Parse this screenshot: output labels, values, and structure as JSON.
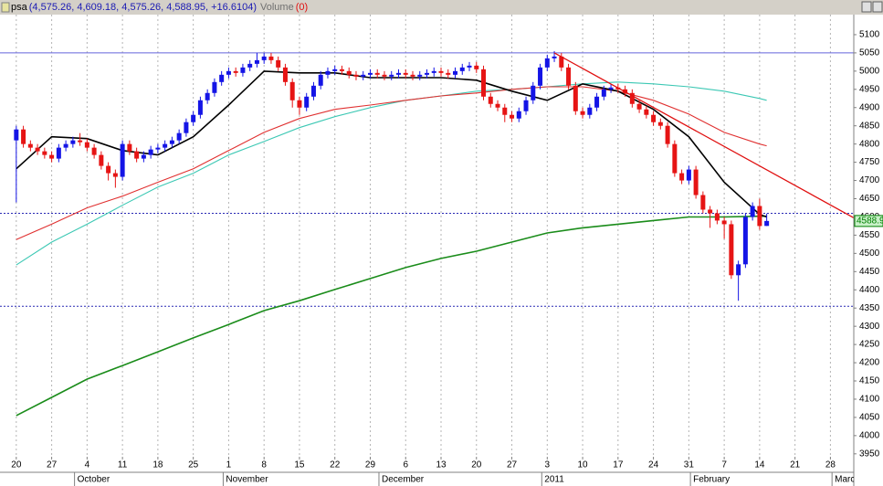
{
  "chart_data": {
    "type": "candlestick",
    "symbol": "psa",
    "quote": "(4,575.26, 4,609.18, 4,575.26, 4,588.95, +16.6104)",
    "volume_label": "Volume",
    "volume_value": "(0)",
    "ylim": [
      3942,
      5150
    ],
    "yticks": [
      3950,
      4000,
      4050,
      4100,
      4150,
      4200,
      4250,
      4300,
      4350,
      4400,
      4450,
      4500,
      4550,
      4600,
      4650,
      4700,
      4750,
      4800,
      4850,
      4900,
      4950,
      5000,
      5050,
      5100
    ],
    "xlim": [
      -2.3,
      118.3
    ],
    "xticks": [
      {
        "value": 0,
        "label": "20"
      },
      {
        "value": 5,
        "label": "27"
      },
      {
        "value": 10,
        "label": "4"
      },
      {
        "value": 15,
        "label": "11"
      },
      {
        "value": 20,
        "label": "18"
      },
      {
        "value": 25,
        "label": "25"
      },
      {
        "value": 30,
        "label": "1"
      },
      {
        "value": 35,
        "label": "8"
      },
      {
        "value": 40,
        "label": "15"
      },
      {
        "value": 45,
        "label": "22"
      },
      {
        "value": 50,
        "label": "29"
      },
      {
        "value": 55,
        "label": "6"
      },
      {
        "value": 60,
        "label": "13"
      },
      {
        "value": 65,
        "label": "20"
      },
      {
        "value": 70,
        "label": "27"
      },
      {
        "value": 75,
        "label": "3"
      },
      {
        "value": 80,
        "label": "10"
      },
      {
        "value": 85,
        "label": "17"
      },
      {
        "value": 90,
        "label": "24"
      },
      {
        "value": 95,
        "label": "31"
      },
      {
        "value": 100,
        "label": "7"
      },
      {
        "value": 105,
        "label": "14"
      },
      {
        "value": 110,
        "label": "21"
      },
      {
        "value": 115,
        "label": "28"
      }
    ],
    "month_ticks": [
      {
        "value": 9,
        "label": "October"
      },
      {
        "value": 30,
        "label": "November"
      },
      {
        "value": 52,
        "label": "December"
      },
      {
        "value": 75,
        "label": "2011"
      },
      {
        "value": 96,
        "label": "February"
      },
      {
        "value": 116,
        "label": "March"
      }
    ],
    "grid": true,
    "up_color": "#1414e6",
    "down_color": "#e61414",
    "open": [
      4810,
      4840,
      4800,
      4790,
      4780,
      4770,
      4760,
      4790,
      4800,
      4810,
      4805,
      4790,
      4770,
      4740,
      4720,
      4710,
      4800,
      4780,
      4760,
      4770,
      4785,
      4790,
      4800,
      4810,
      4830,
      4860,
      4880,
      4920,
      4940,
      4970,
      4990,
      5000,
      4995,
      5010,
      5020,
      5030,
      5040,
      5030,
      5010,
      4970,
      4920,
      4900,
      4930,
      4960,
      4990,
      5000,
      5005,
      5000,
      4990,
      4985,
      4990,
      4995,
      4990,
      4985,
      4990,
      4995,
      4990,
      4985,
      4990,
      4995,
      5000,
      4995,
      4990,
      5000,
      5010,
      5015,
      5005,
      4930,
      4910,
      4900,
      4880,
      4870,
      4890,
      4920,
      4960,
      5010,
      5035,
      5040,
      5010,
      4960,
      4890,
      4880,
      4900,
      4930,
      4950,
      4955,
      4950,
      4940,
      4910,
      4895,
      4880,
      4860,
      4850,
      4800,
      4720,
      4700,
      4730,
      4660,
      4620,
      4610,
      4590,
      4580,
      4440,
      4470,
      4600,
      4630,
      4575.26
    ],
    "high": [
      4850,
      4850,
      4810,
      4800,
      4790,
      4780,
      4800,
      4810,
      4820,
      4830,
      4815,
      4800,
      4780,
      4750,
      4730,
      4810,
      4810,
      4790,
      4780,
      4795,
      4800,
      4810,
      4820,
      4840,
      4870,
      4890,
      4930,
      4950,
      4980,
      5000,
      5010,
      5010,
      5020,
      5030,
      5050,
      5050,
      5050,
      5040,
      5020,
      4980,
      4930,
      4940,
      4970,
      5000,
      5010,
      5015,
      5015,
      5010,
      5000,
      5000,
      5005,
      5005,
      5000,
      5000,
      5005,
      5005,
      5000,
      5000,
      5005,
      5010,
      5010,
      5005,
      5010,
      5020,
      5025,
      5025,
      5015,
      4940,
      4920,
      4910,
      4890,
      4900,
      4930,
      4970,
      5020,
      5045,
      5055,
      5050,
      5020,
      4970,
      4900,
      4910,
      4940,
      4960,
      4965,
      4965,
      4960,
      4950,
      4920,
      4905,
      4890,
      4870,
      4860,
      4810,
      4730,
      4740,
      4740,
      4670,
      4630,
      4620,
      4600,
      4590,
      4480,
      4610,
      4640,
      4650,
      4609.18
    ],
    "low": [
      4640,
      4790,
      4780,
      4770,
      4760,
      4750,
      4750,
      4780,
      4790,
      4795,
      4780,
      4760,
      4730,
      4700,
      4680,
      4700,
      4770,
      4750,
      4750,
      4760,
      4775,
      4780,
      4790,
      4800,
      4820,
      4850,
      4870,
      4910,
      4930,
      4960,
      4980,
      4985,
      4985,
      5000,
      5010,
      5020,
      5020,
      5000,
      4960,
      4900,
      4880,
      4890,
      4920,
      4950,
      4980,
      4990,
      4990,
      4980,
      4975,
      4975,
      4980,
      4980,
      4975,
      4975,
      4980,
      4980,
      4975,
      4975,
      4980,
      4985,
      4985,
      4980,
      4980,
      4990,
      5000,
      4995,
      4920,
      4900,
      4890,
      4860,
      4860,
      4860,
      4880,
      4910,
      4950,
      5000,
      5025,
      5000,
      4950,
      4880,
      4870,
      4870,
      4890,
      4920,
      4940,
      4940,
      4930,
      4900,
      4885,
      4870,
      4850,
      4840,
      4790,
      4710,
      4690,
      4690,
      4650,
      4610,
      4570,
      4580,
      4540,
      4430,
      4370,
      4460,
      4590,
      4565,
      4575.26
    ],
    "close": [
      4840,
      4800,
      4790,
      4780,
      4770,
      4760,
      4790,
      4800,
      4810,
      4805,
      4790,
      4770,
      4740,
      4720,
      4710,
      4800,
      4780,
      4760,
      4770,
      4785,
      4790,
      4800,
      4810,
      4830,
      4860,
      4880,
      4920,
      4940,
      4970,
      4990,
      5000,
      4995,
      5010,
      5020,
      5030,
      5040,
      5030,
      5010,
      4970,
      4920,
      4900,
      4930,
      4960,
      4990,
      5000,
      5005,
      5000,
      4990,
      4985,
      4990,
      4995,
      4990,
      4985,
      4990,
      4995,
      4990,
      4985,
      4990,
      4995,
      5000,
      4995,
      4990,
      5000,
      5010,
      5015,
      5005,
      4930,
      4910,
      4900,
      4880,
      4870,
      4890,
      4920,
      4960,
      5010,
      5035,
      5040,
      5010,
      4960,
      4890,
      4880,
      4900,
      4930,
      4950,
      4955,
      4950,
      4940,
      4910,
      4895,
      4880,
      4860,
      4850,
      4800,
      4720,
      4700,
      4730,
      4660,
      4620,
      4610,
      4590,
      4580,
      4440,
      4470,
      4600,
      4630,
      4575,
      4588.95
    ],
    "last_price": 4588.9,
    "last_price_color": "#008000",
    "ma_x": [
      0,
      5,
      10,
      15,
      20,
      25,
      30,
      35,
      40,
      45,
      50,
      55,
      60,
      65,
      70,
      75,
      80,
      85,
      90,
      95,
      100,
      105,
      106
    ],
    "moving_averages": [
      {
        "color": "#3cc8b4",
        "values": [
          4468,
          4531,
          4580,
          4632,
          4682,
          4720,
          4770,
          4807,
          4845,
          4875,
          4900,
          4920,
          4932,
          4945,
          4950,
          4957,
          4965,
          4970,
          4965,
          4957,
          4945,
          4925,
          4920
        ]
      },
      {
        "color": "#e03030",
        "values": [
          4538,
          4580,
          4625,
          4657,
          4695,
          4732,
          4782,
          4832,
          4870,
          4895,
          4907,
          4920,
          4932,
          4940,
          4950,
          4957,
          4957,
          4945,
          4920,
          4882,
          4832,
          4800,
          4795
        ]
      },
      {
        "color": "#1a8c1a",
        "values": [
          4055,
          4105,
          4155,
          4192,
          4230,
          4268,
          4305,
          4343,
          4370,
          4401,
          4431,
          4461,
          4486,
          4506,
          4531,
          4556,
          4570,
          4580,
          4590,
          4600,
          4600,
          4602,
          4602
        ]
      },
      {
        "color": "#000000",
        "values": [
          4732,
          4820,
          4815,
          4782,
          4770,
          4820,
          4907,
          5000,
          4995,
          4995,
          4982,
          4982,
          4982,
          4975,
          4945,
          4920,
          4965,
          4945,
          4895,
          4820,
          4695,
          4607,
          4600
        ]
      }
    ],
    "hlines": [
      {
        "value": 5050,
        "color": "#6464dc",
        "style": "solid"
      },
      {
        "value": 4610,
        "color": "#2828b4",
        "style": "dotted"
      },
      {
        "value": 4355,
        "color": "#2828b4",
        "style": "dotted"
      }
    ],
    "trendline": {
      "color": "#e01010",
      "x": [
        76,
        119
      ],
      "y": [
        5050,
        4590
      ]
    }
  }
}
